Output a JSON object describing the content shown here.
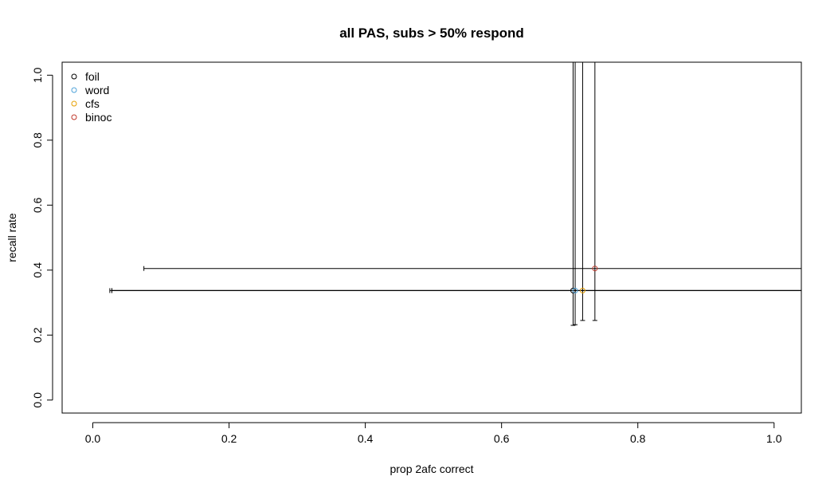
{
  "chart_data": {
    "type": "scatter",
    "title": "all PAS, subs > 50% respond",
    "xlabel": "prop 2afc correct",
    "ylabel": "recall rate",
    "xlim": [
      -0.045,
      1.04
    ],
    "ylim": [
      -0.04,
      1.04
    ],
    "xticks": [
      0.0,
      0.2,
      0.4,
      0.6,
      0.8,
      1.0
    ],
    "xtick_labels": [
      "0.0",
      "0.2",
      "0.4",
      "0.6",
      "0.8",
      "1.0"
    ],
    "yticks": [
      0.0,
      0.2,
      0.4,
      0.6,
      0.8,
      1.0
    ],
    "ytick_labels": [
      "0.0",
      "0.2",
      "0.4",
      "0.6",
      "0.8",
      "1.0"
    ],
    "grid": false,
    "legend": "top-left",
    "series": [
      {
        "name": "foil",
        "color": "#000000",
        "x": 0.705,
        "y": 0.337,
        "xerr": [
          0.025,
          1.4
        ],
        "yerr": [
          0.23,
          1.4
        ]
      },
      {
        "name": "word",
        "color": "#4fa3d9",
        "x": 0.708,
        "y": 0.337,
        "xerr": [
          0.028,
          1.4
        ],
        "yerr": [
          0.232,
          1.4
        ]
      },
      {
        "name": "cfs",
        "color": "#e69f00",
        "x": 0.719,
        "y": 0.337,
        "xerr": [
          0.028,
          1.4
        ],
        "yerr": [
          0.245,
          1.4
        ]
      },
      {
        "name": "binoc",
        "color": "#c0392b",
        "x": 0.737,
        "y": 0.405,
        "xerr": [
          0.075,
          1.4
        ],
        "yerr": [
          0.245,
          1.4
        ]
      }
    ]
  }
}
